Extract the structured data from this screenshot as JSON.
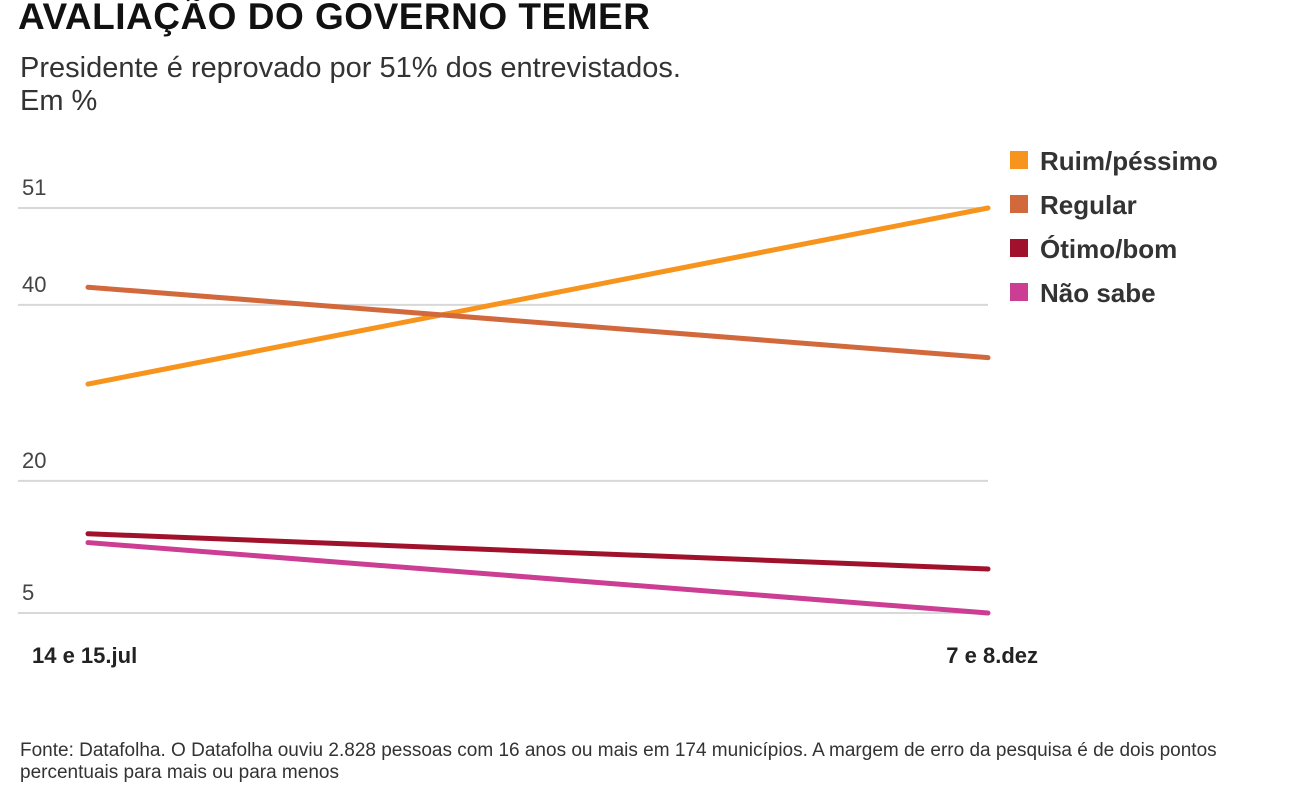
{
  "header": {
    "title": "AVALIAÇÃO DO GOVERNO TEMER",
    "subtitle": "Presidente é reprovado por 51% dos entrevistados.",
    "unit": "Em %"
  },
  "chart_data": {
    "type": "line",
    "x": [
      "14 e 15.jul",
      "7 e 8.dez"
    ],
    "yticks": [
      51,
      40,
      20,
      5
    ],
    "ylim": [
      5,
      51
    ],
    "grid": true,
    "legend_position": "top-right",
    "series": [
      {
        "name": "Ruim/péssimo",
        "color": "#f7941d",
        "values": [
          31,
          51
        ]
      },
      {
        "name": "Regular",
        "color": "#d2693c",
        "values": [
          42,
          34
        ]
      },
      {
        "name": "Ótimo/bom",
        "color": "#a0122b",
        "values": [
          14,
          10
        ]
      },
      {
        "name": "Não sabe",
        "color": "#cc3d94",
        "values": [
          13,
          5
        ]
      }
    ]
  },
  "footer": {
    "source": "Fonte: Datafolha. O Datafolha ouviu 2.828 pessoas com 16 anos ou mais em 174 municípios. A margem de erro da pesquisa é de dois pontos percentuais para mais ou para menos"
  }
}
